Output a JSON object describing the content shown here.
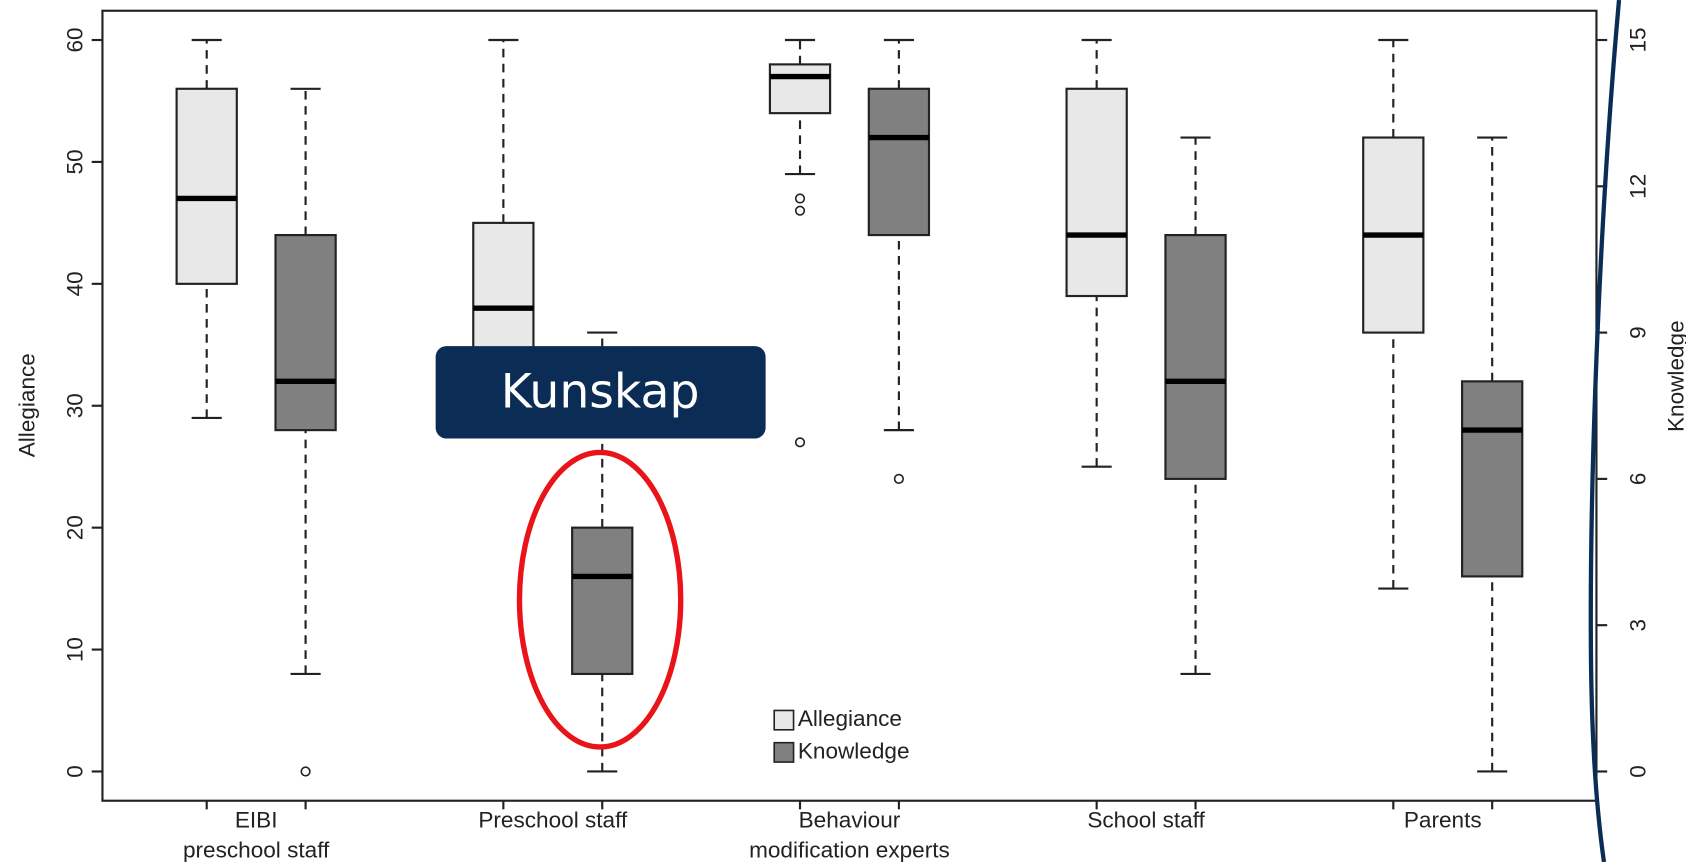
{
  "chart_data": {
    "type": "box",
    "categories": [
      "EIBI\npreschool staff",
      "Preschool staff",
      "Behaviour\nmodification experts",
      "School staff",
      "Parents"
    ],
    "ylabel": "Allegiance",
    "y2label": "Knowledge",
    "ylim": [
      -2.4,
      62.4
    ],
    "yticks": [
      0,
      10,
      20,
      30,
      40,
      50,
      60
    ],
    "y2lim": [
      -0.6,
      15.6
    ],
    "y2ticks": [
      0,
      3,
      6,
      9,
      12,
      15
    ],
    "series": [
      {
        "name": "Allegiance",
        "color": "#e8e8e8",
        "axis": "y",
        "min": [
          29,
          28,
          49,
          25,
          15
        ],
        "q1": [
          40,
          32,
          54,
          39,
          36
        ],
        "median": [
          47,
          38,
          57,
          44,
          44
        ],
        "q3": [
          56,
          45,
          58,
          56,
          52
        ],
        "max": [
          60,
          60,
          60,
          60,
          60
        ],
        "outliers": [
          [],
          [],
          [
            47,
            46,
            27
          ],
          [],
          []
        ]
      },
      {
        "name": "Knowledge",
        "color": "#808080",
        "axis": "y2",
        "min": [
          2,
          0,
          7,
          2,
          0
        ],
        "q1": [
          7,
          2,
          11,
          6,
          4
        ],
        "median": [
          8,
          4,
          13,
          8,
          7
        ],
        "q3": [
          11,
          5,
          14,
          11,
          8
        ],
        "max": [
          14,
          9,
          15,
          13,
          13
        ],
        "outliers": [
          [
            0
          ],
          [],
          [
            6
          ],
          [],
          []
        ]
      }
    ],
    "annotations": [
      {
        "text": "Kunskap"
      }
    ]
  }
}
